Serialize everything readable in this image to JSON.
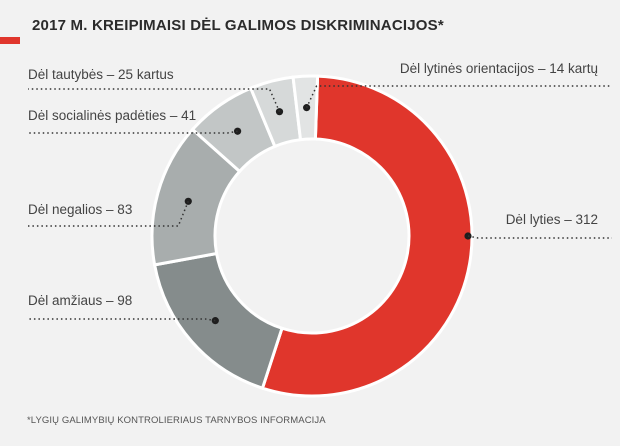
{
  "title": "2017 M. KREIPIMAISI DĖL GALIMOS DISKRIMINACIJOS*",
  "footnote": "*LYGIŲ GALIMYBIŲ KONTROLIERIAUS TARNYBOS INFORMACIJA",
  "chart_data": {
    "type": "pie",
    "variant": "donut",
    "title": "2017 M. KREIPIMAISI DĖL GALIMOS DISKRIMINACIJOS*",
    "slices": [
      {
        "label": "Dėl lyties – 312",
        "value": 312,
        "color": "#e0362c"
      },
      {
        "label": "Dėl amžiaus – 98",
        "value": 98,
        "color": "#858c8c"
      },
      {
        "label": "Dėl negalios  – 83",
        "value": 83,
        "color": "#a8adad"
      },
      {
        "label": "Dėl socialinės padėties – 41",
        "value": 41,
        "color": "#c2c6c6"
      },
      {
        "label": "Dėl tautybės – 25 kartus",
        "value": 25,
        "color": "#d6d9d9"
      },
      {
        "label": "Dėl lytinės orientacijos – 14 kartų",
        "value": 14,
        "color": "#e2e4e4"
      }
    ]
  }
}
